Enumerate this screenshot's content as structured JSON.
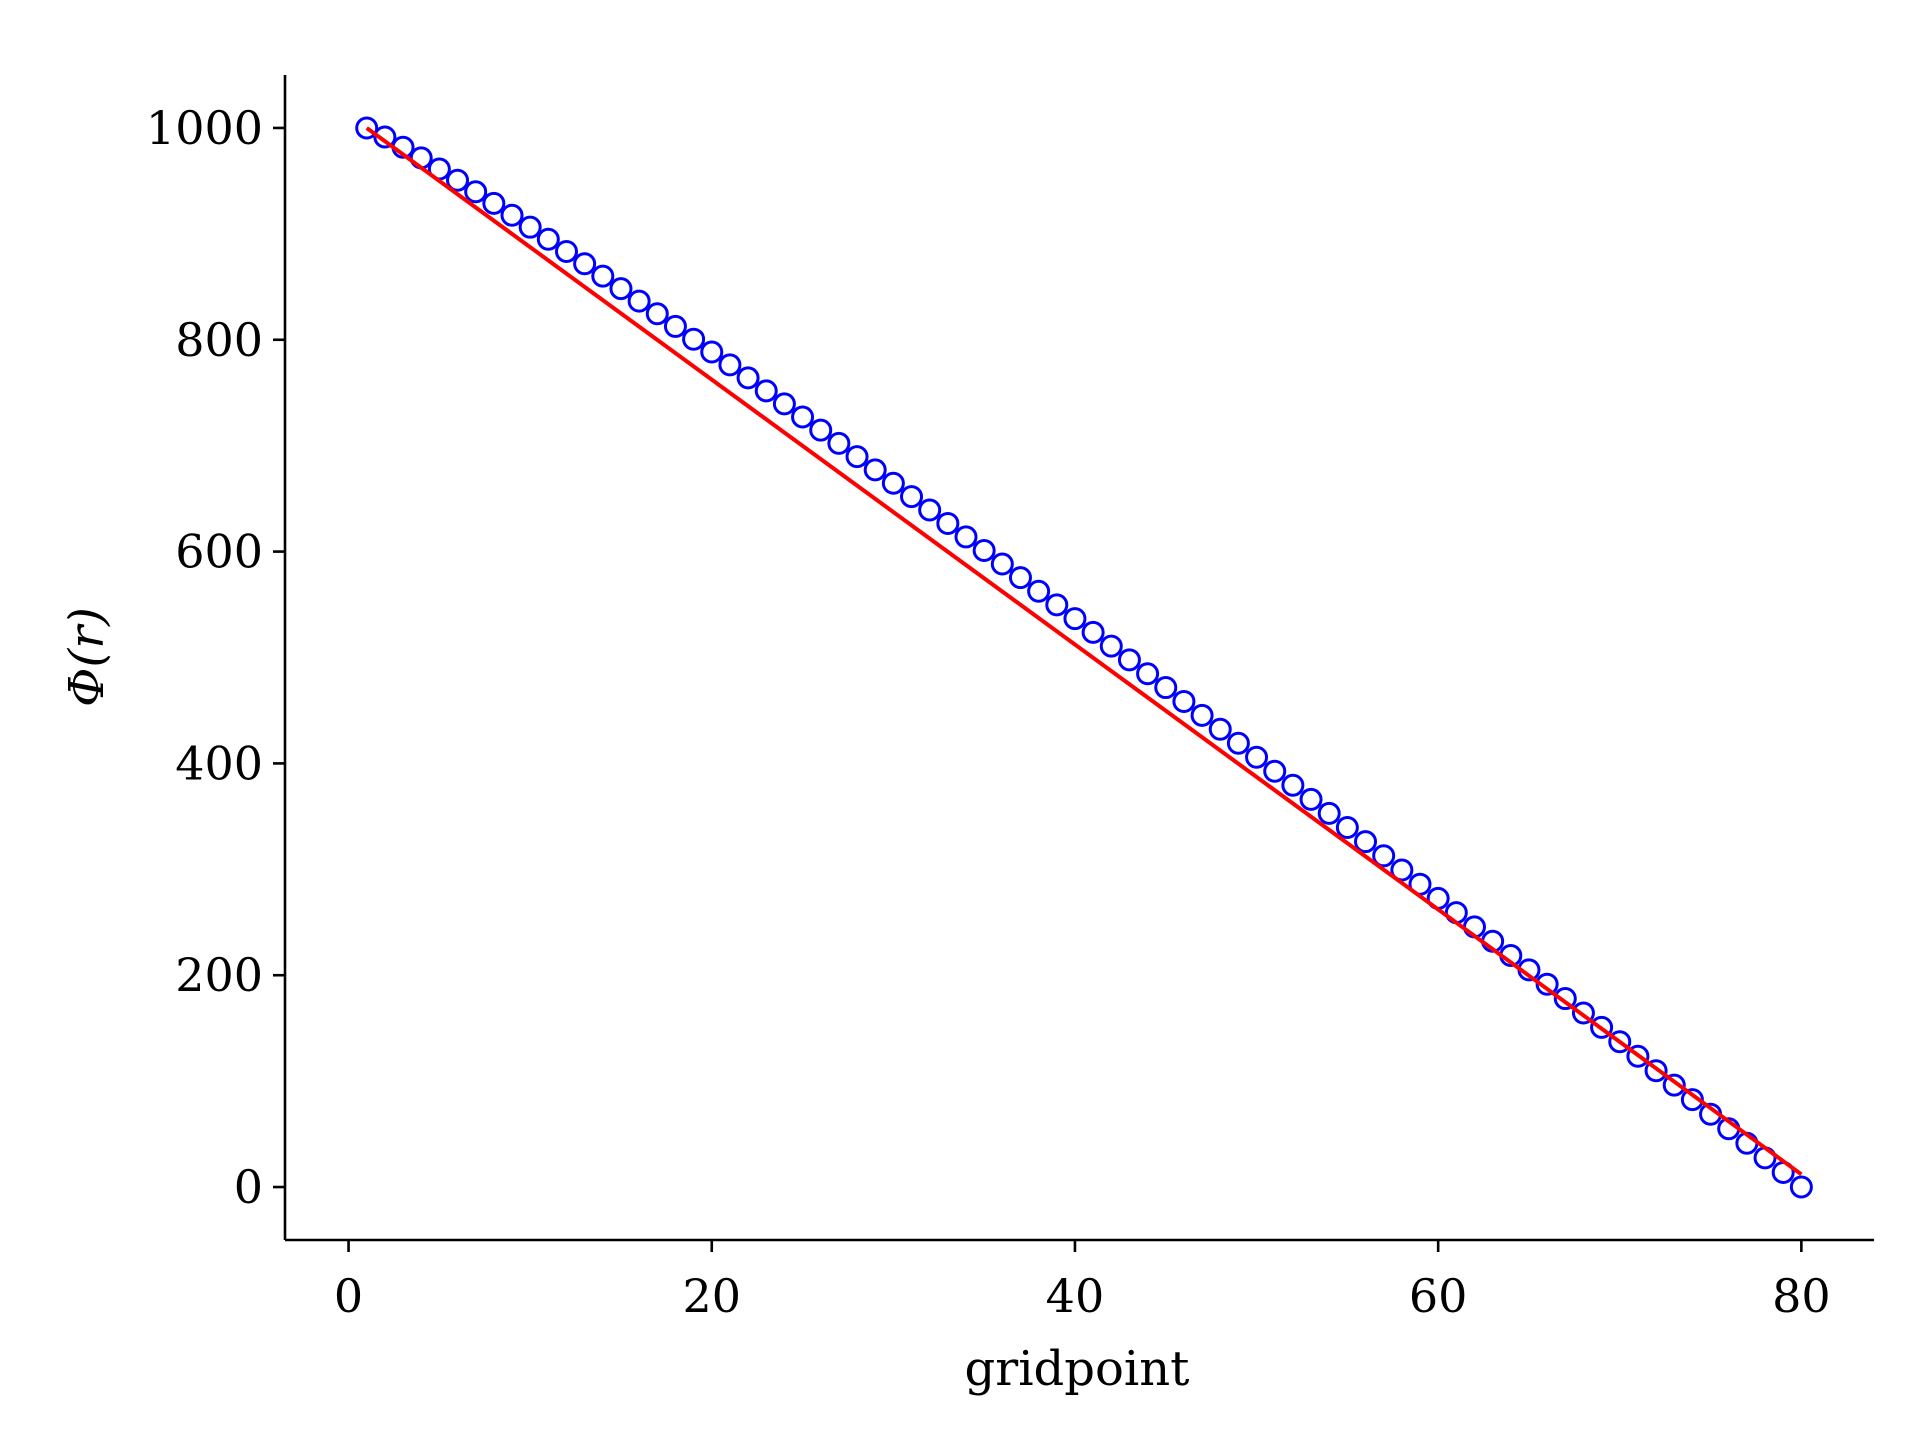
{
  "chart_data": {
    "type": "line",
    "title": "",
    "xlabel": "gridpoint",
    "ylabel": "Φ(r)",
    "xlim": [
      -3.5,
      84
    ],
    "ylim": [
      -50,
      1050
    ],
    "xticks": [
      0,
      20,
      40,
      60,
      80
    ],
    "yticks": [
      0,
      200,
      400,
      600,
      800,
      1000
    ],
    "grid": false,
    "legend": "none",
    "series": [
      {
        "style": "markers",
        "marker": "open-circle",
        "color": "#0000ff",
        "x_start": 1,
        "x_end": 80,
        "x_step": 1,
        "y_start": 1000,
        "y_end": 0,
        "shape": "power",
        "exponent": 1.09
      },
      {
        "style": "line",
        "color": "#ff0000",
        "x": [
          1,
          80
        ],
        "y": [
          1000,
          12
        ]
      }
    ]
  }
}
